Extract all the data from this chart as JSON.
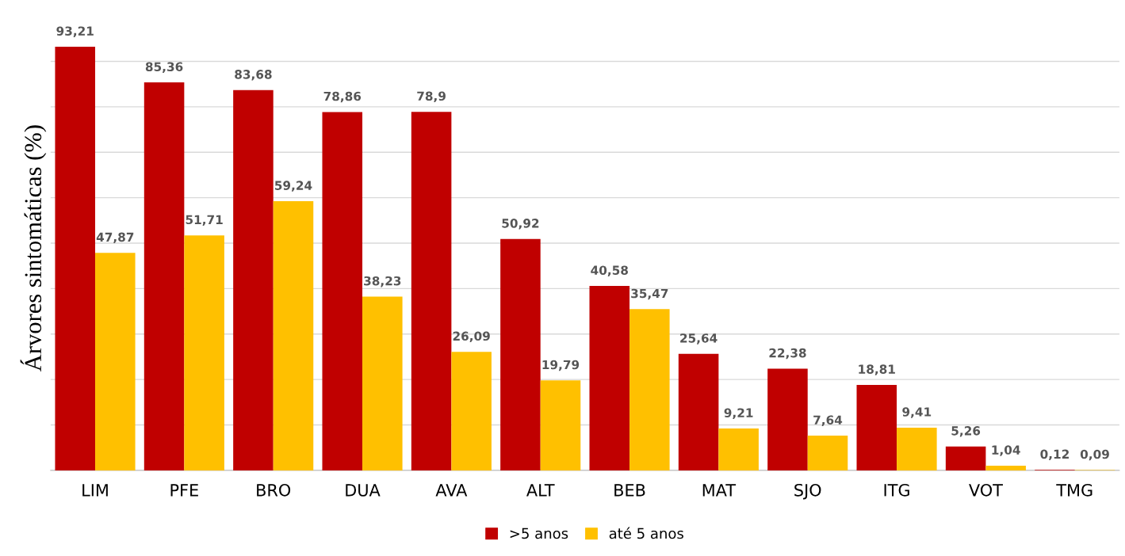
{
  "chart_data": {
    "type": "bar",
    "ylabel": "Árvores sintomáticas (%)",
    "categories": [
      "LIM",
      "PFE",
      "BRO",
      "DUA",
      "AVA",
      "ALT",
      "BEB",
      "MAT",
      "SJO",
      "ITG",
      "VOT",
      "TMG"
    ],
    "series": [
      {
        "name": ">5 anos",
        "color": "#c00000",
        "values": [
          93.21,
          85.36,
          83.68,
          78.86,
          78.9,
          50.92,
          40.58,
          25.64,
          22.38,
          18.81,
          5.26,
          0.12
        ],
        "value_labels": [
          "93,21",
          "85,36",
          "83,68",
          "78,86",
          "78,9",
          "50,92",
          "40,58",
          "25,64",
          "22,38",
          "18,81",
          "5,26",
          "0,12"
        ]
      },
      {
        "name": "até 5 anos",
        "color": "#ffc000",
        "values": [
          47.87,
          51.71,
          59.24,
          38.23,
          26.09,
          19.79,
          35.47,
          9.21,
          7.64,
          9.41,
          1.04,
          0.09
        ],
        "value_labels": [
          "47,87",
          "51,71",
          "59,24",
          "38,23",
          "26,09",
          "19,79",
          "35,47",
          "9,21",
          "7,64",
          "9,41",
          "1,04",
          "0,09"
        ]
      }
    ],
    "yticks": [
      {
        "value": 0,
        "label": null
      },
      {
        "value": 10,
        "label": null
      },
      {
        "value": 20,
        "label": null
      },
      {
        "value": 30,
        "label": null
      },
      {
        "value": 40,
        "label": null
      },
      {
        "value": 50,
        "label": null
      },
      {
        "value": 60,
        "label": null
      },
      {
        "value": 70,
        "label": null
      },
      {
        "value": 80,
        "label": null
      },
      {
        "value": 90,
        "label": null
      }
    ],
    "tick_labels": "x",
    "grid": "y",
    "legend": "bottom"
  }
}
